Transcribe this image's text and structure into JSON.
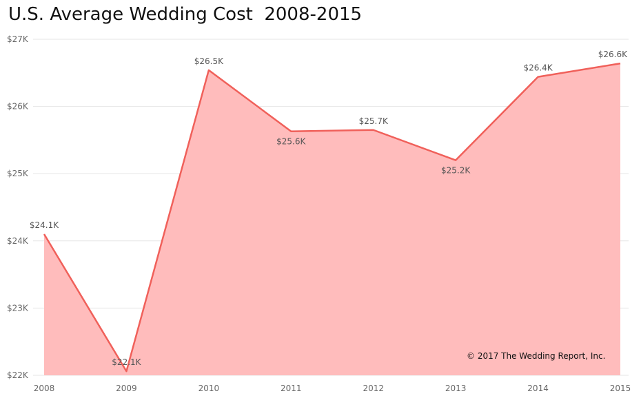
{
  "chart_data": {
    "type": "area",
    "title": "U.S. Average Wedding Cost  2008-2015",
    "xlabel": "",
    "ylabel": "",
    "categories": [
      "2008",
      "2009",
      "2010",
      "2011",
      "2012",
      "2013",
      "2014",
      "2015"
    ],
    "values": [
      24100,
      22060,
      26540,
      25630,
      25650,
      25200,
      26440,
      26640
    ],
    "data_labels": [
      "$24.1K",
      "$22.1K",
      "$26.5K",
      "$25.6K",
      "$25.7K",
      "$25.2K",
      "$26.4K",
      "$26.6K"
    ],
    "label_positions": [
      "above",
      "above",
      "above",
      "below",
      "above",
      "below",
      "above",
      "above"
    ],
    "ylim": [
      22000,
      27000
    ],
    "yticks": [
      22000,
      23000,
      24000,
      25000,
      26000,
      27000
    ],
    "ytick_labels": [
      "$22K",
      "$23K",
      "$24K",
      "$25K",
      "$26K",
      "$27K"
    ],
    "grid": true,
    "line_color": "#f0605a",
    "fill_color": "#ffbcbc",
    "annotation": "© 2017 The Wedding Report, Inc."
  }
}
